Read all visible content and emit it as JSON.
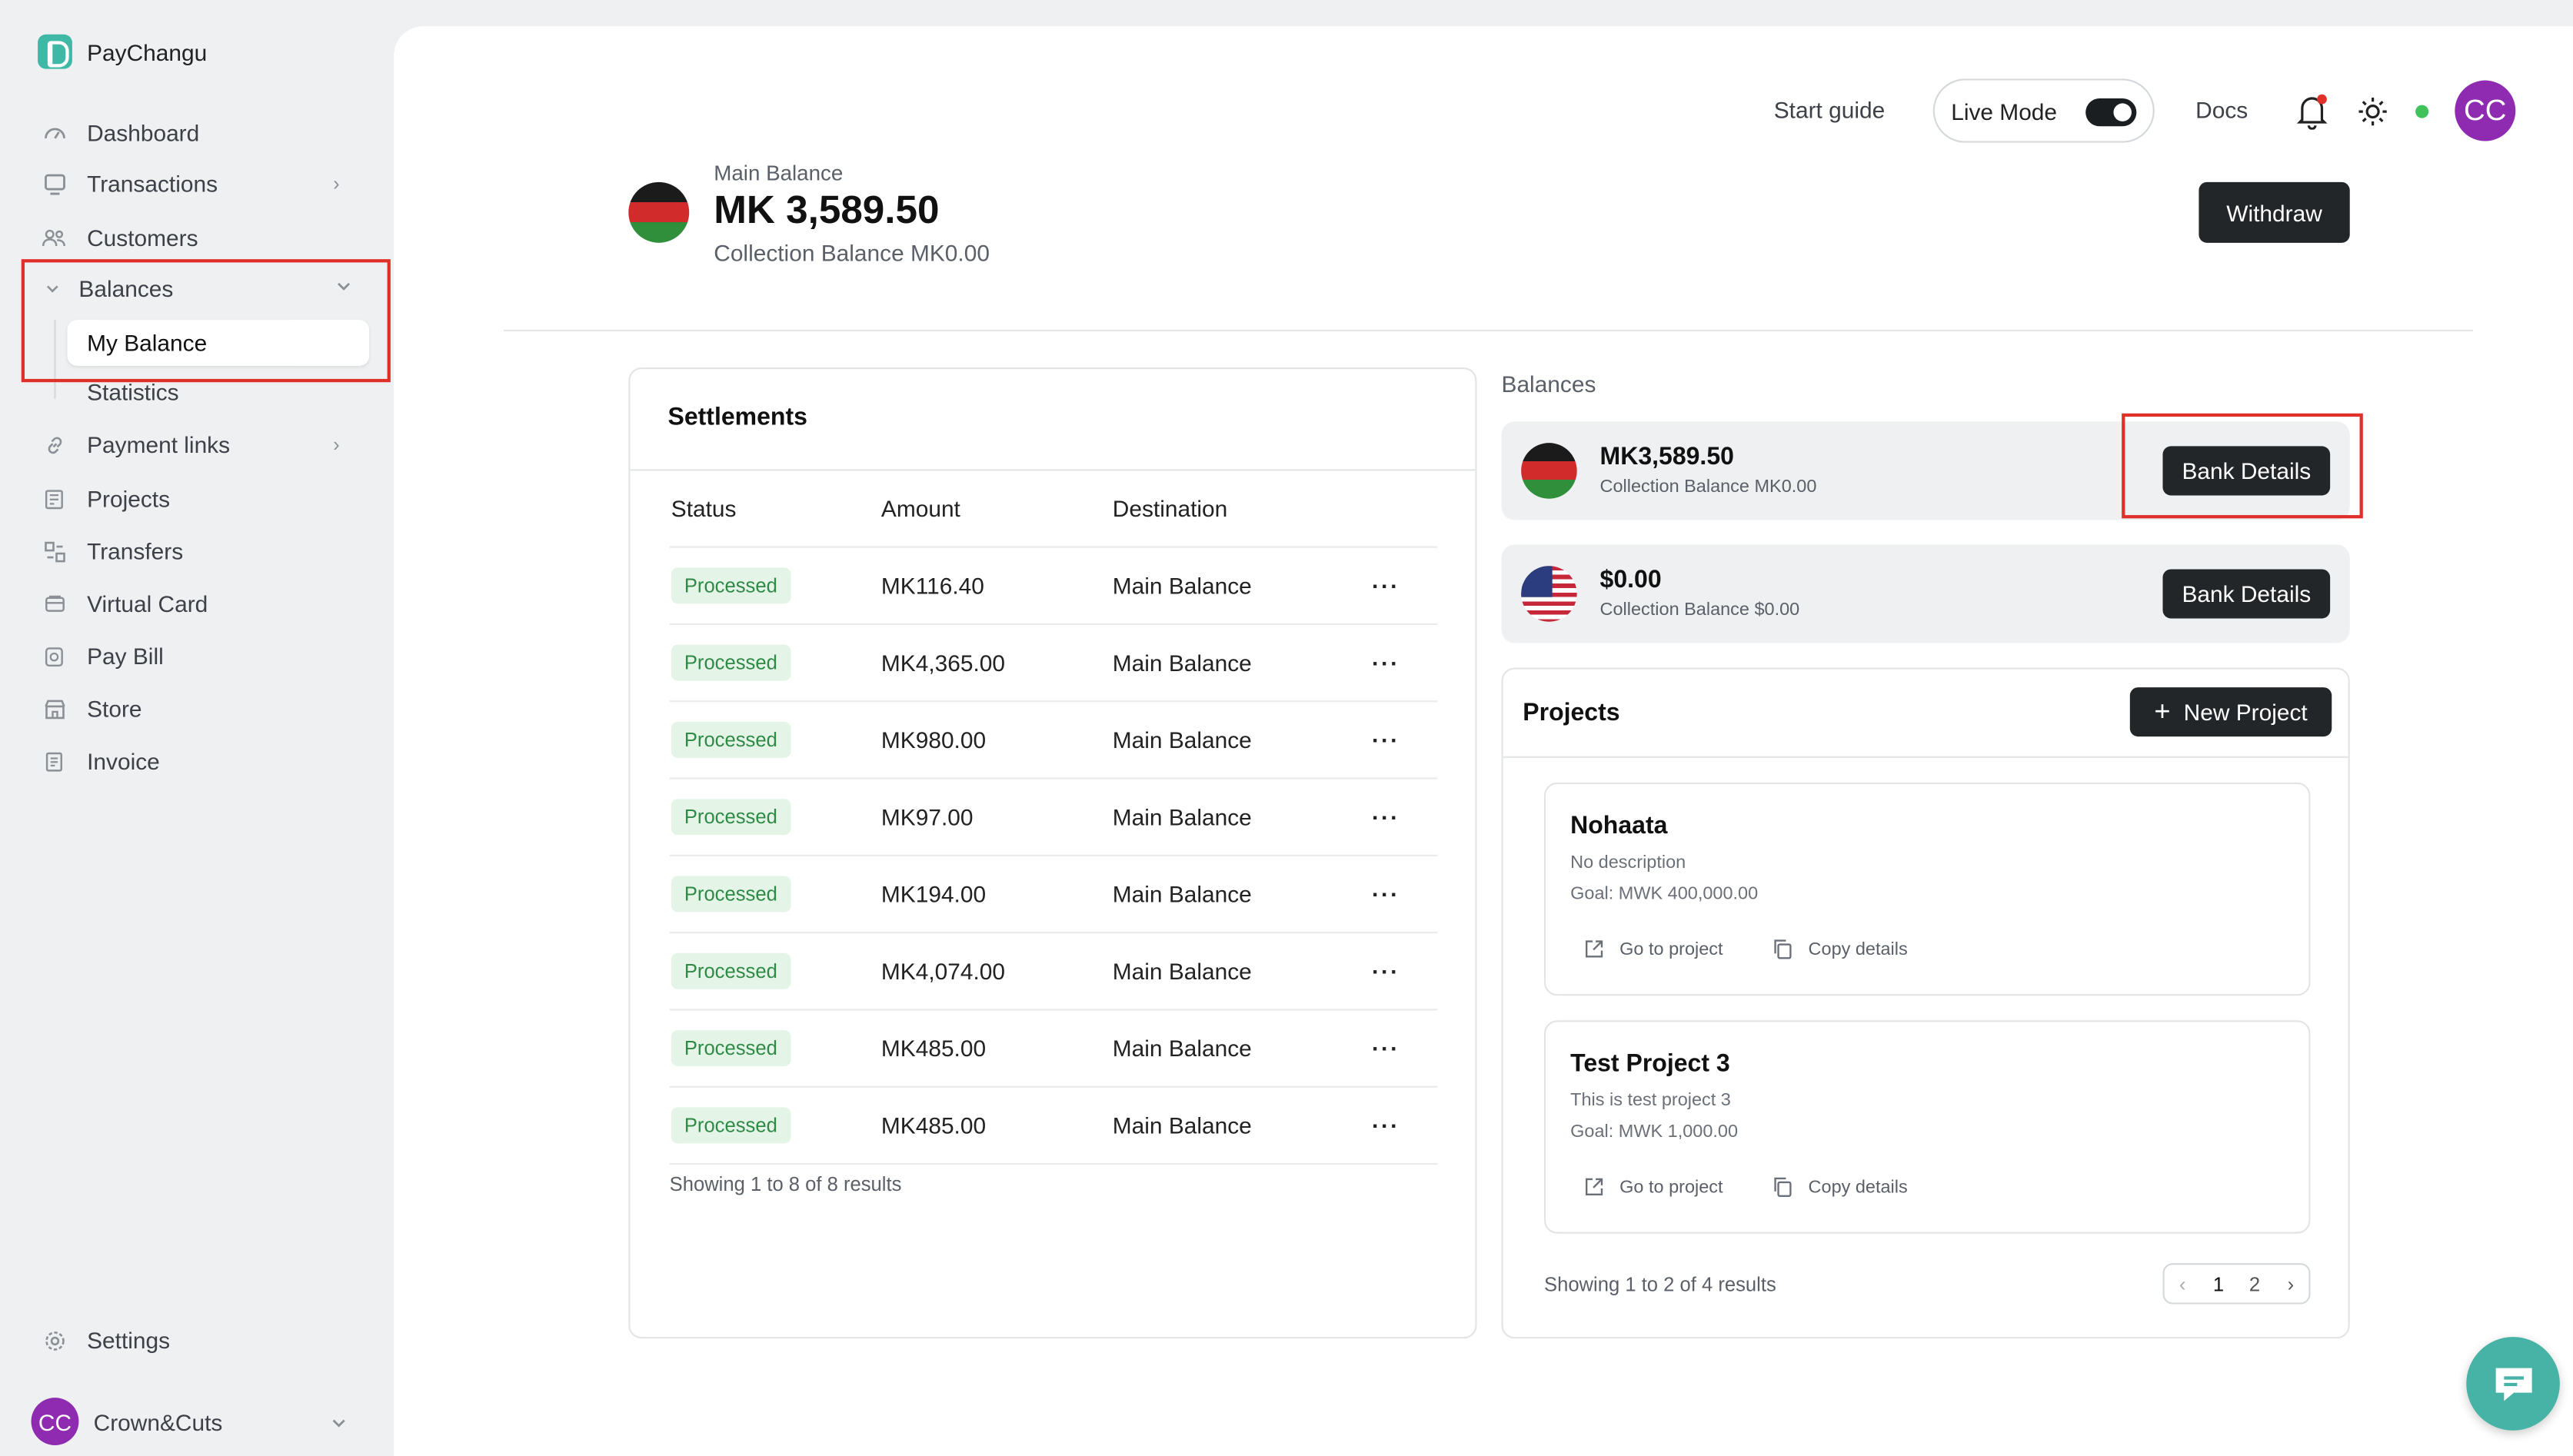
{
  "app": {
    "name": "PayChangu"
  },
  "sidebar": {
    "items": [
      {
        "label": "Dashboard",
        "icon": "dashboard-icon"
      },
      {
        "label": "Transactions",
        "icon": "transactions-icon"
      },
      {
        "label": "Customers",
        "icon": "customers-icon"
      },
      {
        "label": "Balances",
        "icon": "balances-icon"
      },
      {
        "label": "Payment links",
        "icon": "link-icon"
      },
      {
        "label": "Projects",
        "icon": "projects-icon"
      },
      {
        "label": "Transfers",
        "icon": "transfers-icon"
      },
      {
        "label": "Virtual Card",
        "icon": "card-icon"
      },
      {
        "label": "Pay Bill",
        "icon": "bill-icon"
      },
      {
        "label": "Store",
        "icon": "store-icon"
      },
      {
        "label": "Invoice",
        "icon": "invoice-icon"
      }
    ],
    "balances_sub": {
      "active": "My Balance",
      "other": "Statistics"
    },
    "settings": "Settings",
    "account": {
      "initials": "CC",
      "name": "Crown&Cuts"
    }
  },
  "topbar": {
    "start_guide": "Start guide",
    "live_mode": "Live Mode",
    "docs": "Docs",
    "avatar_initials": "CC",
    "status_color": "#3fc35a"
  },
  "header": {
    "label": "Main Balance",
    "amount": "MK 3,589.50",
    "collection": "Collection Balance MK0.00",
    "withdraw": "Withdraw"
  },
  "settlements": {
    "title": "Settlements",
    "columns": [
      "Status",
      "Amount",
      "Destination"
    ],
    "rows": [
      {
        "status": "Processed",
        "amount": "MK116.40",
        "destination": "Main Balance"
      },
      {
        "status": "Processed",
        "amount": "MK4,365.00",
        "destination": "Main Balance"
      },
      {
        "status": "Processed",
        "amount": "MK980.00",
        "destination": "Main Balance"
      },
      {
        "status": "Processed",
        "amount": "MK97.00",
        "destination": "Main Balance"
      },
      {
        "status": "Processed",
        "amount": "MK194.00",
        "destination": "Main Balance"
      },
      {
        "status": "Processed",
        "amount": "MK4,074.00",
        "destination": "Main Balance"
      },
      {
        "status": "Processed",
        "amount": "MK485.00",
        "destination": "Main Balance"
      },
      {
        "status": "Processed",
        "amount": "MK485.00",
        "destination": "Main Balance"
      }
    ],
    "footer": "Showing 1 to 8 of 8 results"
  },
  "balances": {
    "title": "Balances",
    "items": [
      {
        "amount": "MK3,589.50",
        "collection": "Collection Balance MK0.00",
        "button": "Bank Details",
        "flag": "malawi-flag-icon"
      },
      {
        "amount": "$0.00",
        "collection": "Collection Balance $0.00",
        "button": "Bank Details",
        "flag": "usa-flag-icon"
      }
    ]
  },
  "projects": {
    "title": "Projects",
    "new_button": "New Project",
    "items": [
      {
        "name": "Nohaata",
        "description": "No description",
        "goal": "Goal: MWK 400,000.00",
        "go": "Go to project",
        "copy": "Copy details"
      },
      {
        "name": "Test Project 3",
        "description": "This is test project 3",
        "goal": "Goal: MWK 1,000.00",
        "go": "Go to project",
        "copy": "Copy details"
      }
    ],
    "footer": "Showing 1 to 2 of 4 results",
    "pagination": {
      "prev": "‹",
      "pages": [
        "1",
        "2"
      ],
      "next": "›"
    }
  },
  "colors": {
    "accent": "#3fb8a6",
    "highlight": "#e0302a",
    "avatar": "#8e2bb1"
  }
}
